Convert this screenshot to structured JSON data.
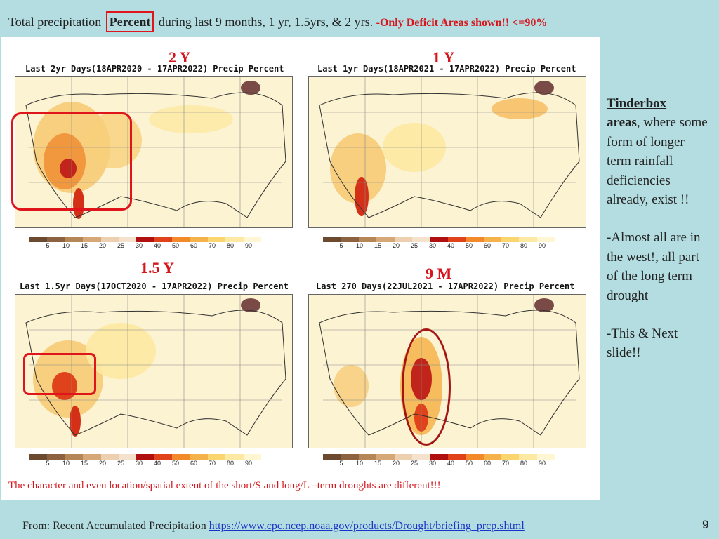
{
  "title": {
    "prefix": "Total precipitation",
    "boxed": "Percent",
    "suffix": "during last 9 months, 1 yr, 1.5yrs, & 2 yrs. ",
    "deficit": "-Only Deficit Areas shown!! <=90%"
  },
  "maps": [
    {
      "label": "2 Y",
      "title": "Last 2yr Days(18APR2020 - 17APR2022) Precip Percent"
    },
    {
      "label": "1 Y",
      "title": "Last 1yr Days(18APR2021 - 17APR2022) Precip Percent"
    },
    {
      "label": "1.5 Y",
      "title": "Last 1.5yr Days(17OCT2020 - 17APR2022) Precip Percent"
    },
    {
      "label": "9 M",
      "title": "Last 270 Days(22JUL2021 - 17APR2022) Precip Percent"
    }
  ],
  "colorbar": {
    "colors": [
      "#6b4a2f",
      "#8c6240",
      "#b58756",
      "#d6a878",
      "#ecd0b0",
      "#f4e2cd",
      "#b01010",
      "#e0421c",
      "#f28a2a",
      "#f6b24a",
      "#fbd66e",
      "#fde9a2",
      "#fff6d3"
    ],
    "ticks": [
      "5",
      "10",
      "15",
      "20",
      "25",
      "30",
      "40",
      "50",
      "60",
      "70",
      "80",
      "90"
    ]
  },
  "caption": "The character and even location/spatial extent of the short/S and long/L –term droughts are different!!!",
  "side": {
    "heading": "Tinderbox",
    "bold": "areas",
    "rest": ", where some form of longer term rainfall deficiencies already, exist !!",
    "para2": "-Almost all are in the west!, all part of the long term drought",
    "para3": "-This & Next slide!!"
  },
  "footer": {
    "text": "From: Recent Accumulated Precipitation ",
    "link": "https://www.cpc.ncep.noaa.gov/products/Drought/briefing_prcp.shtml"
  },
  "page_number": "9"
}
